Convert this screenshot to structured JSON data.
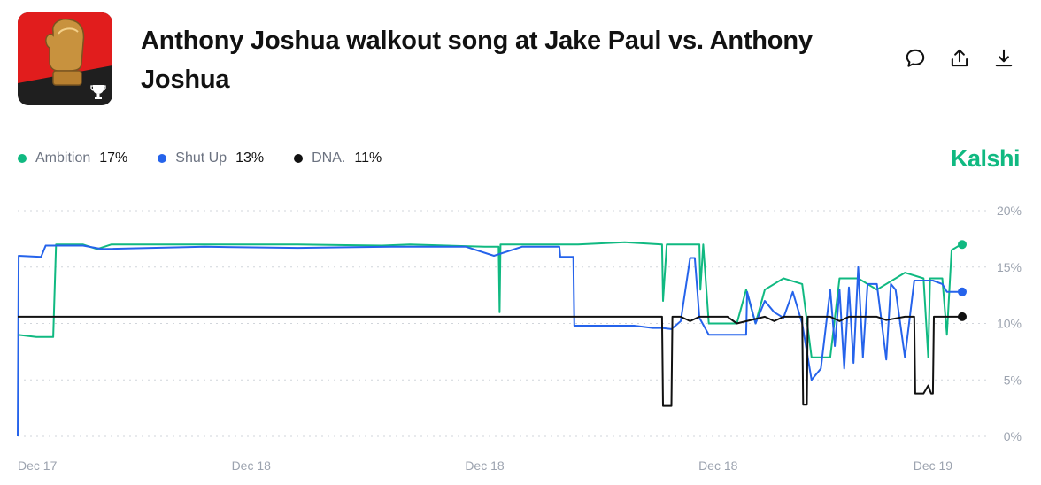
{
  "market": {
    "title": "Anthony Joshua walkout song at Jake Paul vs. Anthony Joshua",
    "brand": "Kalshi",
    "brand_color": "#10b981",
    "thumbnail_icon": "boxing-glove-trophy-icon"
  },
  "actions": [
    {
      "name": "comment-icon"
    },
    {
      "name": "share-icon"
    },
    {
      "name": "download-icon"
    }
  ],
  "legend": [
    {
      "name": "Ambition",
      "value": "17%",
      "color": "#10b981"
    },
    {
      "name": "Shut Up",
      "value": "13%",
      "color": "#2563eb"
    },
    {
      "name": "DNA.",
      "value": "11%",
      "color": "#111111"
    }
  ],
  "chart_data": {
    "type": "line",
    "y_ticks": [
      "20%",
      "15%",
      "10%",
      "5%",
      "0%"
    ],
    "ylim": [
      0,
      20
    ],
    "x_ticks": [
      "Dec 17",
      "Dec 18",
      "Dec 18",
      "Dec 18",
      "Dec 19"
    ],
    "x_tick_pos": [
      0,
      0.25,
      0.5,
      0.75,
      0.98
    ],
    "grid": true,
    "series": [
      {
        "name": "Ambition",
        "color": "#10b981",
        "points": [
          [
            0,
            9
          ],
          [
            0.02,
            8.8
          ],
          [
            0.038,
            8.8
          ],
          [
            0.041,
            17
          ],
          [
            0.07,
            17
          ],
          [
            0.085,
            16.6
          ],
          [
            0.1,
            17
          ],
          [
            0.2,
            17
          ],
          [
            0.3,
            17
          ],
          [
            0.39,
            16.9
          ],
          [
            0.42,
            17
          ],
          [
            0.5,
            16.8
          ],
          [
            0.515,
            16.8
          ],
          [
            0.516,
            11
          ],
          [
            0.517,
            17
          ],
          [
            0.6,
            17
          ],
          [
            0.65,
            17.2
          ],
          [
            0.69,
            17
          ],
          [
            0.691,
            12
          ],
          [
            0.695,
            17
          ],
          [
            0.73,
            17
          ],
          [
            0.731,
            13
          ],
          [
            0.734,
            17
          ],
          [
            0.74,
            10
          ],
          [
            0.77,
            10
          ],
          [
            0.78,
            13
          ],
          [
            0.79,
            10
          ],
          [
            0.8,
            13
          ],
          [
            0.82,
            14
          ],
          [
            0.84,
            13.5
          ],
          [
            0.85,
            7
          ],
          [
            0.87,
            7
          ],
          [
            0.88,
            14
          ],
          [
            0.9,
            14
          ],
          [
            0.92,
            13
          ],
          [
            0.95,
            14.5
          ],
          [
            0.97,
            14
          ],
          [
            0.975,
            7
          ],
          [
            0.977,
            14
          ],
          [
            0.99,
            14
          ],
          [
            0.995,
            9
          ],
          [
            1,
            16.5
          ],
          [
            1.01,
            17
          ]
        ]
      },
      {
        "name": "Shut Up",
        "color": "#2563eb",
        "points": [
          [
            0,
            0
          ],
          [
            0.001,
            16
          ],
          [
            0.025,
            15.9
          ],
          [
            0.03,
            16.9
          ],
          [
            0.07,
            16.9
          ],
          [
            0.09,
            16.6
          ],
          [
            0.2,
            16.8
          ],
          [
            0.3,
            16.7
          ],
          [
            0.4,
            16.8
          ],
          [
            0.48,
            16.8
          ],
          [
            0.51,
            16
          ],
          [
            0.54,
            16.8
          ],
          [
            0.58,
            16.8
          ],
          [
            0.581,
            15.9
          ],
          [
            0.595,
            15.9
          ],
          [
            0.596,
            9.8
          ],
          [
            0.66,
            9.8
          ],
          [
            0.68,
            9.6
          ],
          [
            0.69,
            9.6
          ],
          [
            0.7,
            9.5
          ],
          [
            0.71,
            10.2
          ],
          [
            0.72,
            15.8
          ],
          [
            0.725,
            15.8
          ],
          [
            0.73,
            10.5
          ],
          [
            0.74,
            9
          ],
          [
            0.78,
            9
          ],
          [
            0.781,
            12.8
          ],
          [
            0.79,
            10
          ],
          [
            0.8,
            12
          ],
          [
            0.81,
            11
          ],
          [
            0.82,
            10.5
          ],
          [
            0.83,
            12.8
          ],
          [
            0.84,
            10
          ],
          [
            0.85,
            5
          ],
          [
            0.86,
            6
          ],
          [
            0.87,
            13
          ],
          [
            0.875,
            8
          ],
          [
            0.88,
            13
          ],
          [
            0.885,
            6
          ],
          [
            0.89,
            13.2
          ],
          [
            0.895,
            6.5
          ],
          [
            0.9,
            15
          ],
          [
            0.905,
            7
          ],
          [
            0.91,
            13.5
          ],
          [
            0.92,
            13.5
          ],
          [
            0.93,
            6.8
          ],
          [
            0.935,
            13.5
          ],
          [
            0.94,
            13
          ],
          [
            0.95,
            7
          ],
          [
            0.96,
            13.8
          ],
          [
            0.98,
            13.8
          ],
          [
            0.99,
            13.5
          ],
          [
            0.995,
            12.8
          ],
          [
            1,
            12.8
          ],
          [
            1.01,
            12.8
          ]
        ]
      },
      {
        "name": "DNA.",
        "color": "#111111",
        "points": [
          [
            0,
            10.6
          ],
          [
            0.1,
            10.6
          ],
          [
            0.2,
            10.6
          ],
          [
            0.3,
            10.6
          ],
          [
            0.4,
            10.6
          ],
          [
            0.5,
            10.6
          ],
          [
            0.6,
            10.6
          ],
          [
            0.69,
            10.6
          ],
          [
            0.691,
            2.7
          ],
          [
            0.7,
            2.7
          ],
          [
            0.701,
            10.6
          ],
          [
            0.71,
            10.6
          ],
          [
            0.72,
            10.2
          ],
          [
            0.73,
            10.6
          ],
          [
            0.76,
            10.6
          ],
          [
            0.77,
            10
          ],
          [
            0.8,
            10.6
          ],
          [
            0.81,
            10.2
          ],
          [
            0.82,
            10.6
          ],
          [
            0.84,
            10.6
          ],
          [
            0.841,
            2.8
          ],
          [
            0.845,
            2.8
          ],
          [
            0.846,
            10.6
          ],
          [
            0.87,
            10.6
          ],
          [
            0.88,
            10.2
          ],
          [
            0.89,
            10.6
          ],
          [
            0.92,
            10.6
          ],
          [
            0.93,
            10.3
          ],
          [
            0.95,
            10.6
          ],
          [
            0.96,
            10.6
          ],
          [
            0.961,
            3.8
          ],
          [
            0.97,
            3.8
          ],
          [
            0.975,
            4.5
          ],
          [
            0.978,
            3.8
          ],
          [
            0.98,
            3.8
          ],
          [
            0.981,
            10.6
          ],
          [
            0.99,
            10.6
          ],
          [
            1,
            10.6
          ],
          [
            1.01,
            10.6
          ]
        ]
      }
    ]
  }
}
